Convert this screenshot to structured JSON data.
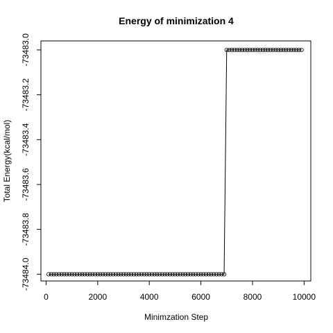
{
  "chart_data": {
    "type": "line",
    "title": "Energy of minimization 4",
    "xlabel": "Minimzation Step",
    "ylabel": "Total Energy(kcal/mol)",
    "xlim": [
      -200,
      10260
    ],
    "ylim": [
      -73484.03,
      -73482.96
    ],
    "xticks": [
      0,
      2000,
      4000,
      6000,
      8000,
      10000
    ],
    "xtick_labels": [
      "0",
      "2000",
      "4000",
      "6000",
      "8000",
      "10000"
    ],
    "yticks": [
      -73484.0,
      -73483.8,
      -73483.6,
      -73483.4,
      -73483.2,
      -73483.0
    ],
    "ytick_labels": [
      "-73484.0",
      "-73483.8",
      "-73483.6",
      "-73483.4",
      "-73483.2",
      "-73483.0"
    ],
    "grid": false,
    "markers": "open-circle",
    "series": [
      {
        "x_start": 100,
        "x_end": 9900,
        "x_step": 100,
        "segments": [
          {
            "x_from": 100,
            "x_to": 6900,
            "y": -73484.0
          },
          {
            "x_from": 7000,
            "x_to": 9900,
            "y": -73483.0
          }
        ]
      }
    ]
  }
}
